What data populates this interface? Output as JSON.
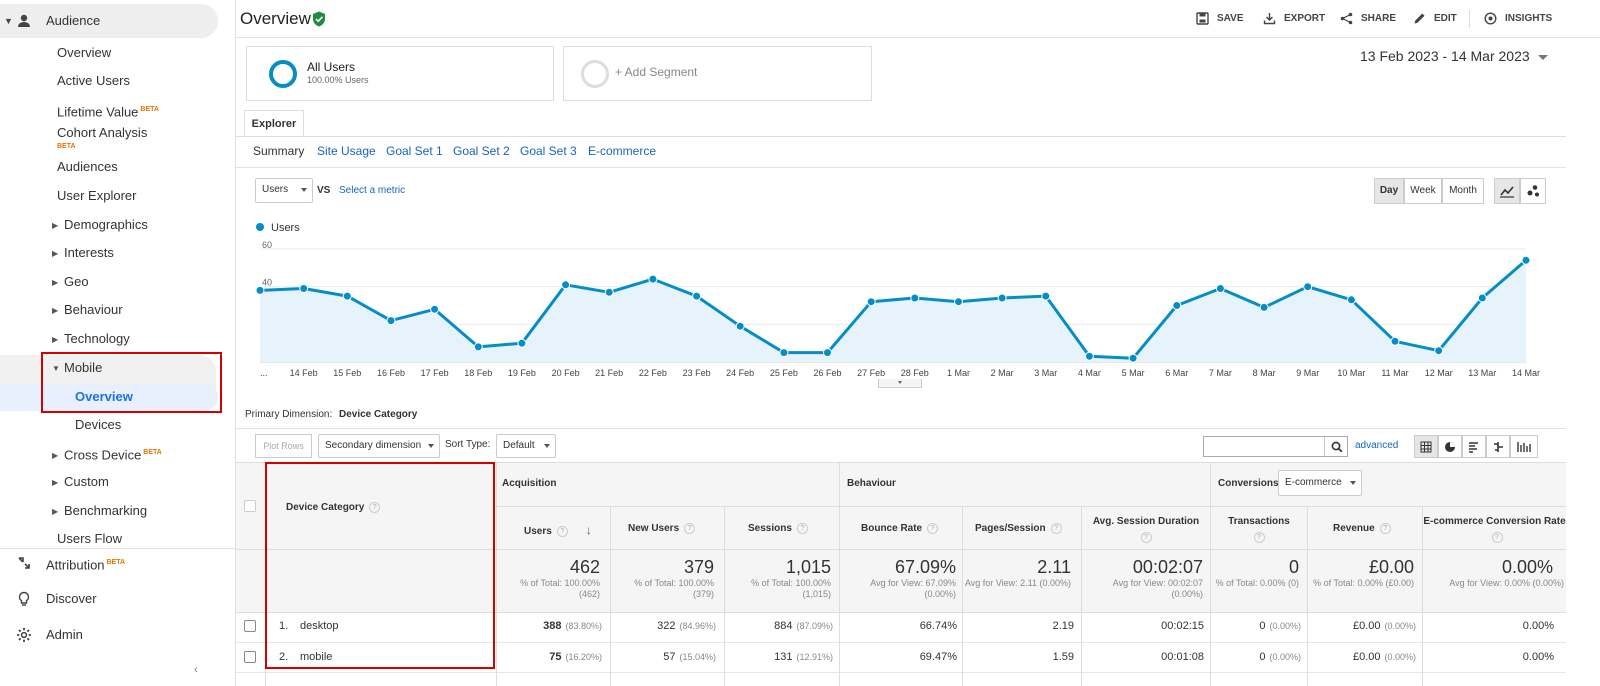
{
  "sidebar": {
    "section_label": "Audience",
    "items": [
      {
        "label": "Overview"
      },
      {
        "label": "Active Users"
      },
      {
        "label": "Lifetime Value",
        "badge": "BETA"
      },
      {
        "label": "Cohort Analysis",
        "badge": "BETA"
      },
      {
        "label": "Audiences"
      },
      {
        "label": "User Explorer"
      },
      {
        "label": "Demographics"
      },
      {
        "label": "Interests"
      },
      {
        "label": "Geo"
      },
      {
        "label": "Behaviour"
      },
      {
        "label": "Technology"
      },
      {
        "label": "Mobile"
      },
      {
        "label": "Overview"
      },
      {
        "label": "Devices"
      },
      {
        "label": "Cross Device",
        "badge": "BETA"
      },
      {
        "label": "Custom"
      },
      {
        "label": "Benchmarking"
      },
      {
        "label": "Users Flow"
      }
    ],
    "bottom": [
      {
        "label": "Attribution",
        "badge": "BETA"
      },
      {
        "label": "Discover"
      },
      {
        "label": "Admin"
      }
    ]
  },
  "header": {
    "title": "Overview",
    "actions": [
      "SAVE",
      "EXPORT",
      "SHARE",
      "EDIT",
      "INSIGHTS"
    ]
  },
  "segments": {
    "all_users": "All Users",
    "all_users_pct": "100.00% Users",
    "add_segment": "+ Add Segment"
  },
  "date_range": "13 Feb 2023 - 14 Mar 2023",
  "explorer": {
    "tab": "Explorer",
    "subtabs": [
      "Summary",
      "Site Usage",
      "Goal Set 1",
      "Goal Set 2",
      "Goal Set 3",
      "E-commerce"
    ]
  },
  "metric_controls": {
    "metric": "Users",
    "vs": "VS",
    "select_metric": "Select a metric",
    "periods": [
      "Day",
      "Week",
      "Month"
    ]
  },
  "chart_data": {
    "type": "line",
    "legend": "Users",
    "ylim": [
      0,
      60
    ],
    "yticks": [
      20,
      40,
      60
    ],
    "x": [
      "13 Feb",
      "14 Feb",
      "15 Feb",
      "16 Feb",
      "17 Feb",
      "18 Feb",
      "19 Feb",
      "20 Feb",
      "21 Feb",
      "22 Feb",
      "23 Feb",
      "24 Feb",
      "25 Feb",
      "26 Feb",
      "27 Feb",
      "28 Feb",
      "1 Mar",
      "2 Mar",
      "3 Mar",
      "4 Mar",
      "5 Mar",
      "6 Mar",
      "7 Mar",
      "8 Mar",
      "9 Mar",
      "10 Mar",
      "11 Mar",
      "12 Mar",
      "13 Mar",
      "14 Mar"
    ],
    "tick_labels": [
      "...",
      "14 Feb",
      "15 Feb",
      "16 Feb",
      "17 Feb",
      "18 Feb",
      "19 Feb",
      "20 Feb",
      "21 Feb",
      "22 Feb",
      "23 Feb",
      "24 Feb",
      "25 Feb",
      "26 Feb",
      "27 Feb",
      "28 Feb",
      "1 Mar",
      "2 Mar",
      "3 Mar",
      "4 Mar",
      "5 Mar",
      "6 Mar",
      "7 Mar",
      "8 Mar",
      "9 Mar",
      "10 Mar",
      "11 Mar",
      "12 Mar",
      "13 Mar",
      "14 Mar"
    ],
    "values": [
      38,
      39,
      35,
      22,
      28,
      8,
      10,
      41,
      37,
      44,
      35,
      19,
      5,
      5,
      32,
      34,
      32,
      34,
      35,
      3,
      2,
      30,
      39,
      29,
      40,
      33,
      11,
      6,
      34,
      54
    ],
    "color": "#058dc7",
    "fill": "#e6f3fa"
  },
  "table_controls": {
    "primary_dimension_label": "Primary Dimension:",
    "primary_dimension": "Device Category",
    "plot_rows": "Plot Rows",
    "secondary_dimension": "Secondary dimension",
    "sort_type_label": "Sort Type:",
    "sort_type": "Default",
    "advanced": "advanced"
  },
  "table": {
    "dim_header": "Device Category",
    "groups": {
      "acquisition": "Acquisition",
      "behaviour": "Behaviour",
      "conversions": "Conversions",
      "conversion_select": "E-commerce"
    },
    "columns": [
      "Users",
      "New Users",
      "Sessions",
      "Bounce Rate",
      "Pages/Session",
      "Avg. Session Duration",
      "Transactions",
      "Revenue",
      "E-commerce Conversion Rate"
    ],
    "totals": [
      {
        "value": "462",
        "sub": "% of Total: 100.00% (462)"
      },
      {
        "value": "379",
        "sub": "% of Total: 100.00% (379)"
      },
      {
        "value": "1,015",
        "sub": "% of Total: 100.00% (1,015)"
      },
      {
        "value": "67.09%",
        "sub": "Avg for View: 67.09% (0.00%)"
      },
      {
        "value": "2.11",
        "sub": "Avg for View: 2.11 (0.00%)"
      },
      {
        "value": "00:02:07",
        "sub": "Avg for View: 00:02:07 (0.00%)"
      },
      {
        "value": "0",
        "sub": "% of Total: 0.00% (0)"
      },
      {
        "value": "£0.00",
        "sub": "% of Total: 0.00% (£0.00)"
      },
      {
        "value": "0.00%",
        "sub": "Avg for View: 0.00% (0.00%)"
      }
    ],
    "rows": [
      {
        "num": "1.",
        "name": "desktop",
        "users": "388",
        "users_pct": "(83.80%)",
        "new_users": "322",
        "new_users_pct": "(84.96%)",
        "sessions": "884",
        "sessions_pct": "(87.09%)",
        "bounce": "66.74%",
        "pages": "2.19",
        "duration": "00:02:15",
        "transactions": "0",
        "transactions_pct": "(0.00%)",
        "revenue": "£0.00",
        "revenue_pct": "(0.00%)",
        "conv": "0.00%"
      },
      {
        "num": "2.",
        "name": "mobile",
        "users": "75",
        "users_pct": "(16.20%)",
        "new_users": "57",
        "new_users_pct": "(15.04%)",
        "sessions": "131",
        "sessions_pct": "(12.91%)",
        "bounce": "69.47%",
        "pages": "1.59",
        "duration": "00:01:08",
        "transactions": "0",
        "transactions_pct": "(0.00%)",
        "revenue": "£0.00",
        "revenue_pct": "(0.00%)",
        "conv": "0.00%"
      }
    ]
  }
}
